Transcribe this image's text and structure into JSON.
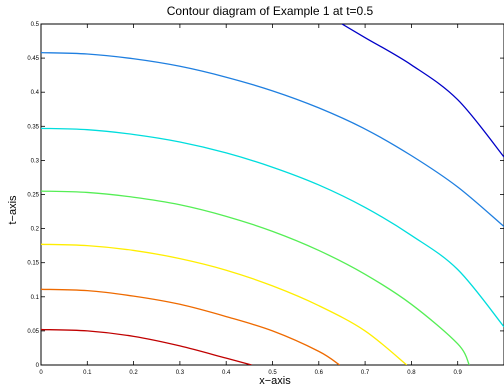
{
  "chart_data": {
    "type": "line",
    "title": "Contour diagram of Example 1 at t=0.5",
    "xlabel": "x−axis",
    "ylabel": "t−axis",
    "xlim": [
      0,
      1
    ],
    "ylim": [
      0,
      0.5
    ],
    "xticks": [
      "0",
      "0.1",
      "0.2",
      "0.3",
      "0.4",
      "0.5",
      "0.6",
      "0.7",
      "0.8",
      "0.9"
    ],
    "yticks": [
      "0",
      "0.05",
      "0.1",
      "0.15",
      "0.2",
      "0.25",
      "0.3",
      "0.35",
      "0.4",
      "0.45",
      "0.5"
    ],
    "grid": false,
    "series": [
      {
        "color": "#c00000",
        "x": [
          0,
          0.1,
          0.2,
          0.3,
          0.4,
          0.455
        ],
        "y": [
          0.052,
          0.05,
          0.042,
          0.028,
          0.01,
          0
        ]
      },
      {
        "color": "#ee6a00",
        "x": [
          0,
          0.1,
          0.2,
          0.3,
          0.4,
          0.5,
          0.6,
          0.645
        ],
        "y": [
          0.111,
          0.109,
          0.101,
          0.089,
          0.071,
          0.05,
          0.02,
          0
        ]
      },
      {
        "color": "#ffee00",
        "x": [
          0,
          0.1,
          0.2,
          0.3,
          0.4,
          0.5,
          0.6,
          0.7,
          0.79
        ],
        "y": [
          0.177,
          0.175,
          0.168,
          0.156,
          0.139,
          0.116,
          0.087,
          0.05,
          0
        ]
      },
      {
        "color": "#55ee55",
        "x": [
          0,
          0.1,
          0.2,
          0.3,
          0.4,
          0.5,
          0.6,
          0.7,
          0.8,
          0.9,
          0.925
        ],
        "y": [
          0.255,
          0.253,
          0.246,
          0.235,
          0.218,
          0.196,
          0.168,
          0.133,
          0.089,
          0.031,
          0
        ]
      },
      {
        "color": "#00dddd",
        "x": [
          0,
          0.1,
          0.2,
          0.3,
          0.4,
          0.5,
          0.6,
          0.7,
          0.8,
          0.9,
          1.0
        ],
        "y": [
          0.347,
          0.345,
          0.338,
          0.327,
          0.311,
          0.29,
          0.264,
          0.231,
          0.19,
          0.14,
          0.056
        ]
      },
      {
        "color": "#1f7fe0",
        "x": [
          0,
          0.1,
          0.2,
          0.3,
          0.4,
          0.5,
          0.6,
          0.7,
          0.8,
          0.9,
          1.0
        ],
        "y": [
          0.458,
          0.456,
          0.449,
          0.438,
          0.422,
          0.402,
          0.377,
          0.346,
          0.307,
          0.261,
          0.203
        ]
      },
      {
        "color": "#0000c8",
        "x": [
          0.65,
          0.7,
          0.8,
          0.9,
          1.0
        ],
        "y": [
          0.5,
          0.48,
          0.44,
          0.389,
          0.305
        ]
      }
    ]
  }
}
